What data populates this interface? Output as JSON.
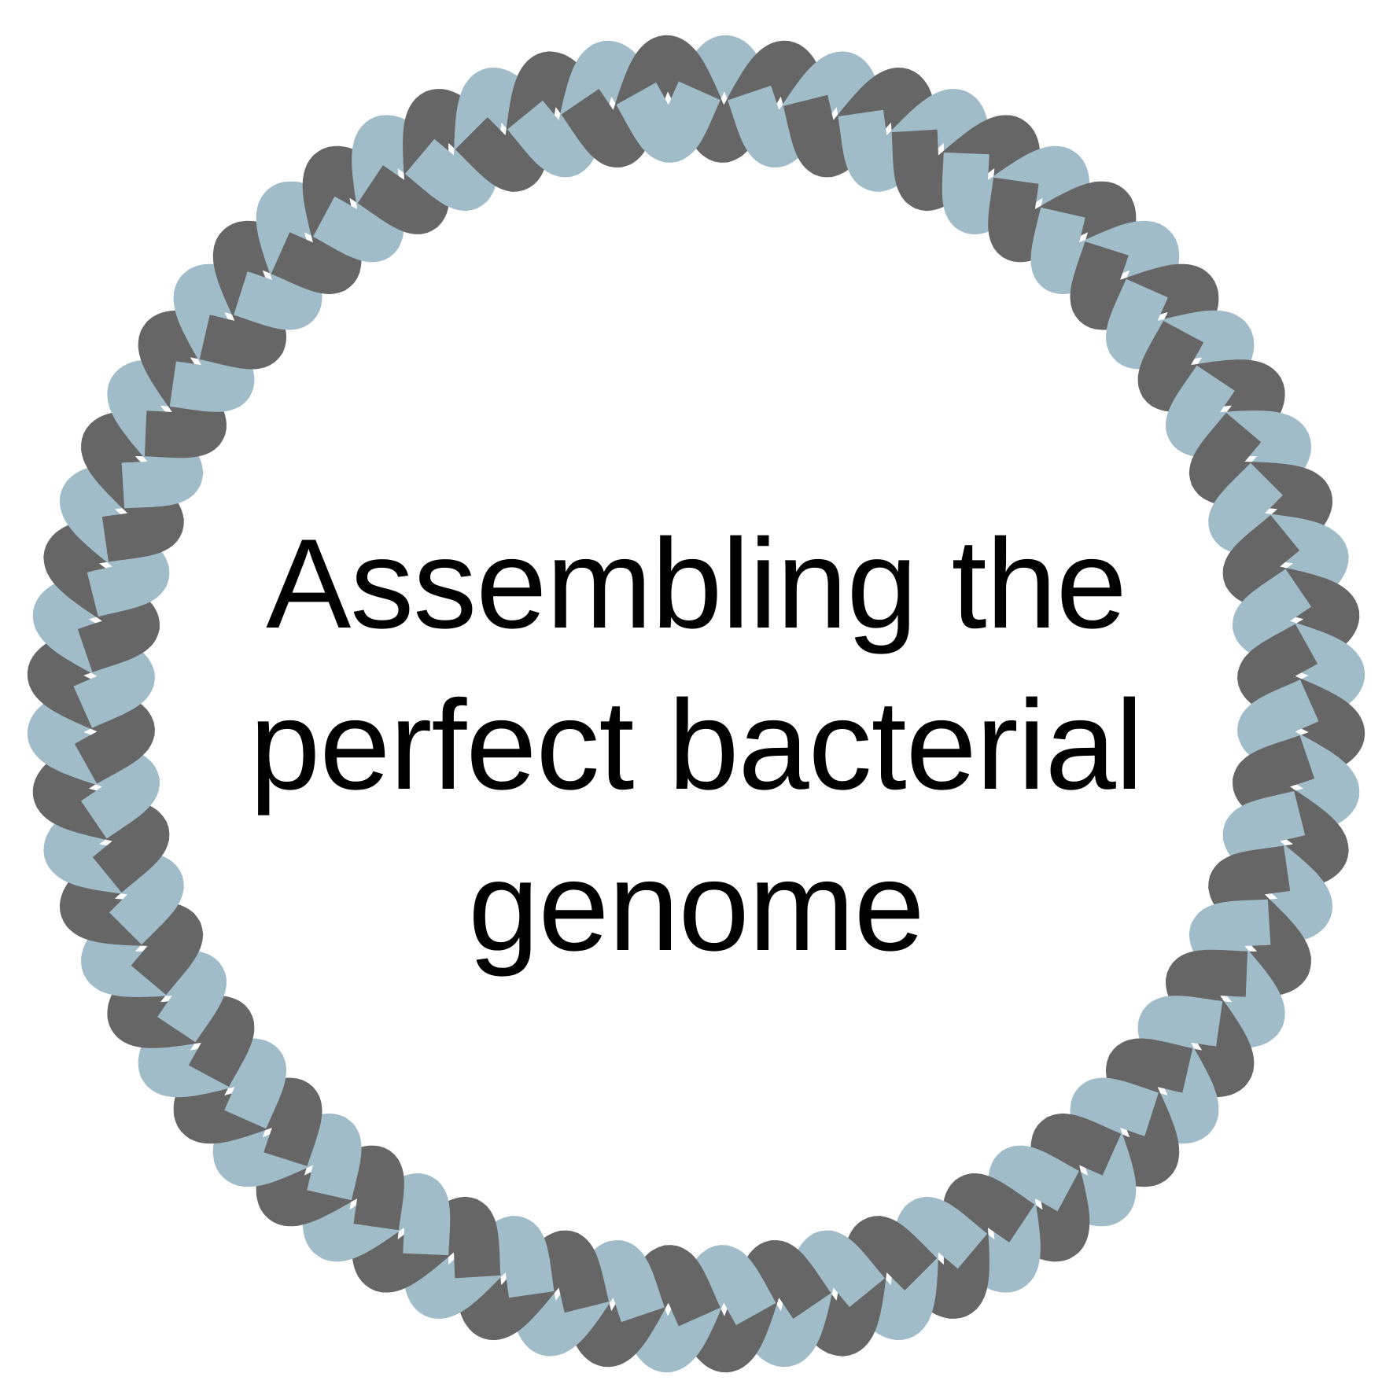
{
  "title": {
    "line1": "Assembling the",
    "line2": "perfect bacterial",
    "line3": "genome"
  },
  "colors": {
    "strand_a": "#666666",
    "strand_b": "#a1bcc9",
    "background": "#ffffff",
    "text": "#000000"
  },
  "figure": {
    "icon": "circular-dna-double-helix"
  }
}
